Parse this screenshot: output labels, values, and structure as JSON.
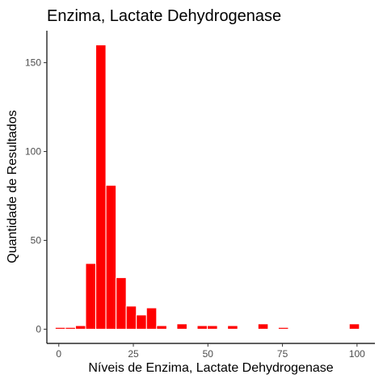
{
  "chart_data": {
    "type": "bar",
    "title": "Enzima, Lactate Dehydrogenase",
    "xlabel": "Níveis de Enzima, Lactate Dehydrogenase",
    "ylabel": "Quantidade de Resultados",
    "bin_width": 3.4,
    "x": [
      0.5,
      3.9,
      7.3,
      10.7,
      14.1,
      17.5,
      20.9,
      24.3,
      27.7,
      31.1,
      34.5,
      37.9,
      41.3,
      44.7,
      48.1,
      51.5,
      54.9,
      58.3,
      61.7,
      65.1,
      68.5,
      71.9,
      75.3,
      78.7,
      82.1,
      85.5,
      88.9,
      92.3,
      95.7,
      99.1
    ],
    "values": [
      1,
      1,
      2,
      37,
      160,
      81,
      29,
      13,
      8,
      12,
      2,
      0,
      3,
      0,
      2,
      2,
      0,
      2,
      0,
      0,
      3,
      0,
      1,
      0,
      0,
      0,
      0,
      0,
      0,
      3
    ],
    "xlim": [
      -4,
      106
    ],
    "ylim": [
      -8,
      168
    ],
    "x_ticks": [
      0,
      25,
      50,
      75,
      100
    ],
    "y_ticks": [
      0,
      50,
      100,
      150
    ],
    "bar_color": "#ff0000",
    "grid": false
  }
}
